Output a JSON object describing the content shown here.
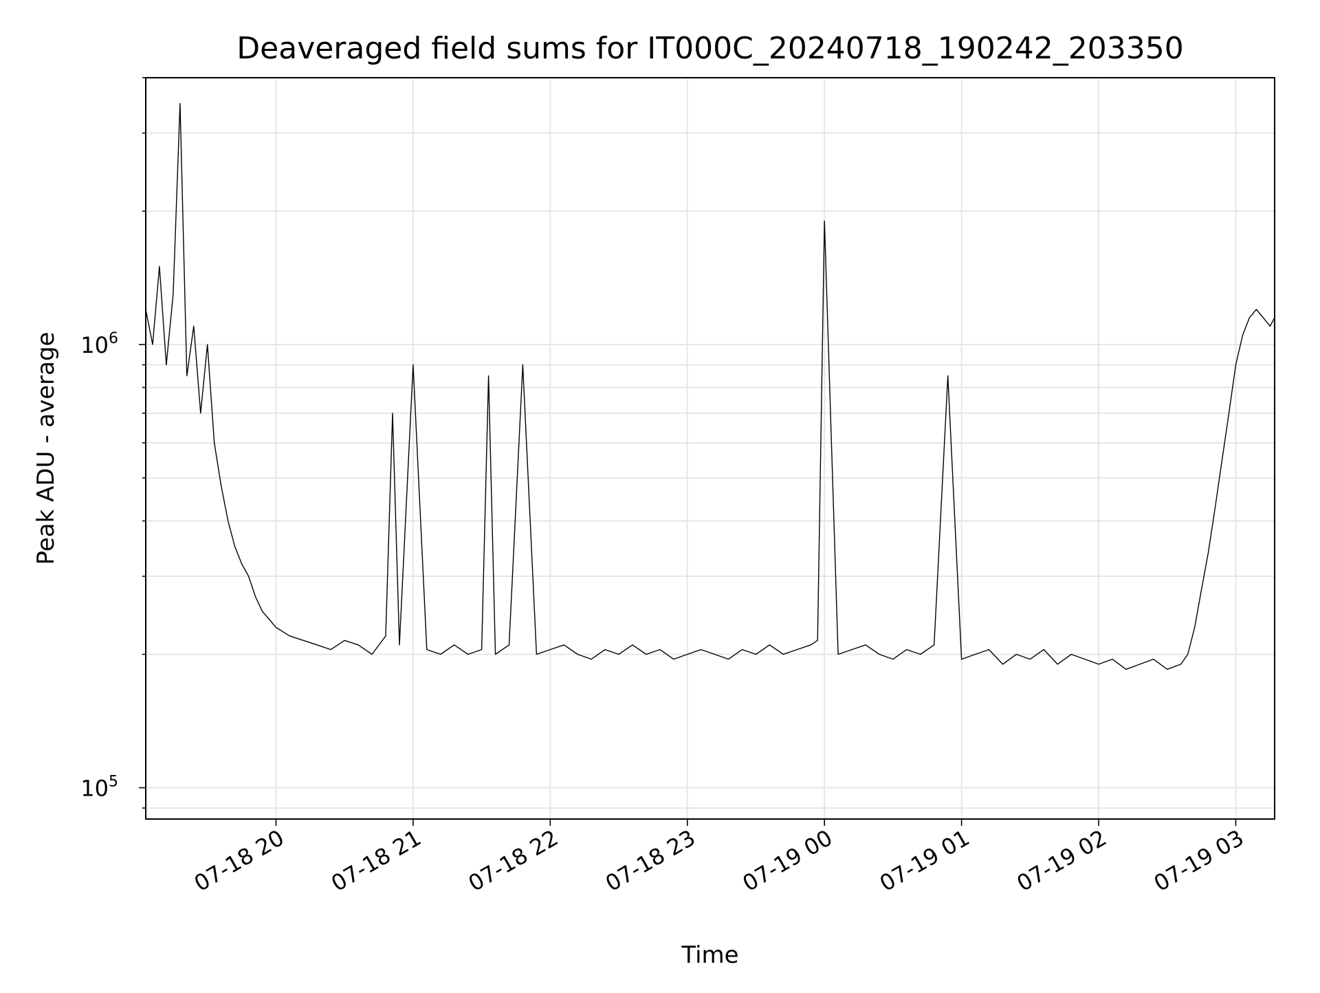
{
  "chart_data": {
    "type": "line",
    "title": "Deaveraged field sums for IT000C_20240718_190242_203350",
    "xlabel": "Time",
    "ylabel": "Peak ADU - average",
    "yscale": "log",
    "ylim": [
      85000,
      4000000
    ],
    "xlim": [
      "2024-07-18 19:03",
      "2024-07-19 03:17"
    ],
    "grid": true,
    "line_color": "#000000",
    "grid_color": "#e6e6e6",
    "x_ticks": [
      {
        "value": "2024-07-18 20:00",
        "label": "07-18 20"
      },
      {
        "value": "2024-07-18 21:00",
        "label": "07-18 21"
      },
      {
        "value": "2024-07-18 22:00",
        "label": "07-18 22"
      },
      {
        "value": "2024-07-18 23:00",
        "label": "07-18 23"
      },
      {
        "value": "2024-07-19 00:00",
        "label": "07-19 00"
      },
      {
        "value": "2024-07-19 01:00",
        "label": "07-19 01"
      },
      {
        "value": "2024-07-19 02:00",
        "label": "07-19 02"
      },
      {
        "value": "2024-07-19 03:00",
        "label": "07-19 03"
      }
    ],
    "y_ticks": [
      {
        "value": 100000,
        "base": "10",
        "exp": "5"
      },
      {
        "value": 1000000,
        "base": "10",
        "exp": "6"
      }
    ],
    "series": [
      {
        "x": [
          "2024-07-18 19:03",
          "2024-07-18 19:06",
          "2024-07-18 19:09",
          "2024-07-18 19:12",
          "2024-07-18 19:15",
          "2024-07-18 19:18",
          "2024-07-18 19:21",
          "2024-07-18 19:24",
          "2024-07-18 19:27",
          "2024-07-18 19:30",
          "2024-07-18 19:33",
          "2024-07-18 19:36",
          "2024-07-18 19:39",
          "2024-07-18 19:42",
          "2024-07-18 19:45",
          "2024-07-18 19:48",
          "2024-07-18 19:51",
          "2024-07-18 19:54",
          "2024-07-18 19:57",
          "2024-07-18 20:00",
          "2024-07-18 20:06",
          "2024-07-18 20:12",
          "2024-07-18 20:18",
          "2024-07-18 20:24",
          "2024-07-18 20:30",
          "2024-07-18 20:36",
          "2024-07-18 20:42",
          "2024-07-18 20:48",
          "2024-07-18 20:51",
          "2024-07-18 20:54",
          "2024-07-18 21:00",
          "2024-07-18 21:06",
          "2024-07-18 21:12",
          "2024-07-18 21:18",
          "2024-07-18 21:24",
          "2024-07-18 21:30",
          "2024-07-18 21:33",
          "2024-07-18 21:36",
          "2024-07-18 21:42",
          "2024-07-18 21:48",
          "2024-07-18 21:54",
          "2024-07-18 22:00",
          "2024-07-18 22:06",
          "2024-07-18 22:12",
          "2024-07-18 22:18",
          "2024-07-18 22:24",
          "2024-07-18 22:30",
          "2024-07-18 22:36",
          "2024-07-18 22:42",
          "2024-07-18 22:48",
          "2024-07-18 22:54",
          "2024-07-18 23:00",
          "2024-07-18 23:06",
          "2024-07-18 23:12",
          "2024-07-18 23:18",
          "2024-07-18 23:24",
          "2024-07-18 23:30",
          "2024-07-18 23:36",
          "2024-07-18 23:42",
          "2024-07-18 23:48",
          "2024-07-18 23:54",
          "2024-07-18 23:57",
          "2024-07-19 00:00",
          "2024-07-19 00:06",
          "2024-07-19 00:12",
          "2024-07-19 00:18",
          "2024-07-19 00:24",
          "2024-07-19 00:30",
          "2024-07-19 00:36",
          "2024-07-19 00:42",
          "2024-07-19 00:48",
          "2024-07-19 00:54",
          "2024-07-19 01:00",
          "2024-07-19 01:06",
          "2024-07-19 01:12",
          "2024-07-19 01:18",
          "2024-07-19 01:24",
          "2024-07-19 01:30",
          "2024-07-19 01:36",
          "2024-07-19 01:42",
          "2024-07-19 01:48",
          "2024-07-19 01:54",
          "2024-07-19 02:00",
          "2024-07-19 02:06",
          "2024-07-19 02:12",
          "2024-07-19 02:18",
          "2024-07-19 02:24",
          "2024-07-19 02:30",
          "2024-07-19 02:36",
          "2024-07-19 02:39",
          "2024-07-19 02:42",
          "2024-07-19 02:45",
          "2024-07-19 02:48",
          "2024-07-19 02:51",
          "2024-07-19 02:54",
          "2024-07-19 02:57",
          "2024-07-19 03:00",
          "2024-07-19 03:03",
          "2024-07-19 03:06",
          "2024-07-19 03:09",
          "2024-07-19 03:12",
          "2024-07-19 03:15",
          "2024-07-19 03:17"
        ],
        "y": [
          1200000,
          1000000,
          1500000,
          900000,
          1300000,
          3500000,
          850000,
          1100000,
          700000,
          1000000,
          600000,
          480000,
          400000,
          350000,
          320000,
          300000,
          270000,
          250000,
          240000,
          230000,
          220000,
          215000,
          210000,
          205000,
          215000,
          210000,
          200000,
          220000,
          700000,
          210000,
          900000,
          205000,
          200000,
          210000,
          200000,
          205000,
          850000,
          200000,
          210000,
          900000,
          200000,
          205000,
          210000,
          200000,
          195000,
          205000,
          200000,
          210000,
          200000,
          205000,
          195000,
          200000,
          205000,
          200000,
          195000,
          205000,
          200000,
          210000,
          200000,
          205000,
          210000,
          215000,
          1900000,
          200000,
          205000,
          210000,
          200000,
          195000,
          205000,
          200000,
          210000,
          850000,
          195000,
          200000,
          205000,
          190000,
          200000,
          195000,
          205000,
          190000,
          200000,
          195000,
          190000,
          195000,
          185000,
          190000,
          195000,
          185000,
          190000,
          200000,
          230000,
          280000,
          340000,
          430000,
          550000,
          700000,
          900000,
          1050000,
          1150000,
          1200000,
          1150000,
          1100000,
          1150000
        ]
      }
    ]
  }
}
